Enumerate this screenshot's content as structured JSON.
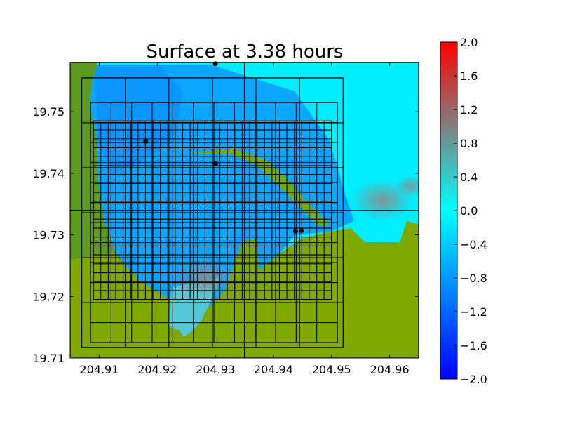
{
  "chart_data": {
    "type": "heatmap",
    "title": "Surface at 3.38 hours",
    "xlabel": "",
    "ylabel": "",
    "xlim": [
      204.905,
      204.965
    ],
    "ylim": [
      19.71,
      19.758
    ],
    "x_ticks": [
      {
        "value": 204.91,
        "label": "204.91"
      },
      {
        "value": 204.92,
        "label": "204.92"
      },
      {
        "value": 204.93,
        "label": "204.93"
      },
      {
        "value": 204.94,
        "label": "204.94"
      },
      {
        "value": 204.95,
        "label": "204.95"
      },
      {
        "value": 204.96,
        "label": "204.96"
      }
    ],
    "y_ticks": [
      {
        "value": 19.71,
        "label": "19.71"
      },
      {
        "value": 19.72,
        "label": "19.72"
      },
      {
        "value": 19.73,
        "label": "19.73"
      },
      {
        "value": 19.74,
        "label": "19.74"
      },
      {
        "value": 19.75,
        "label": "19.75"
      }
    ],
    "colorbar": {
      "min": -2.0,
      "max": 2.0,
      "colormap": [
        "#0000ff",
        "#00ffff",
        "#808080",
        "#ff0000"
      ],
      "ticks": [
        {
          "value": 2.0,
          "label": "2.0"
        },
        {
          "value": 1.6,
          "label": "1.6"
        },
        {
          "value": 1.2,
          "label": "1.2"
        },
        {
          "value": 0.8,
          "label": "0.8"
        },
        {
          "value": 0.4,
          "label": "0.4"
        },
        {
          "value": 0.0,
          "label": "0.0"
        },
        {
          "value": -0.4,
          "label": "−0.4"
        },
        {
          "value": -0.8,
          "label": "−0.8"
        },
        {
          "value": -1.2,
          "label": "−1.2"
        },
        {
          "value": -1.6,
          "label": "−1.6"
        },
        {
          "value": -2.0,
          "label": "−2.0"
        }
      ]
    },
    "colors": {
      "land": "#7fa800",
      "land_dark": "#5f9a20",
      "ocean": "#00eeff",
      "shallow_gray": "#8aa6a6"
    },
    "gauges": [
      {
        "x": 204.93,
        "y": 19.7578
      },
      {
        "x": 204.918,
        "y": 19.7452
      },
      {
        "x": 204.93,
        "y": 19.7416
      },
      {
        "x": 204.9438,
        "y": 19.7306
      },
      {
        "x": 204.9448,
        "y": 19.7307
      }
    ],
    "patch_boundaries": [
      {
        "x0": 204.905,
        "x1": 204.965,
        "y0": 19.71,
        "y1": 19.758,
        "nx": 2,
        "ny": 2
      },
      {
        "x0": 204.907,
        "x1": 204.952,
        "y0": 19.7117,
        "y1": 19.7555,
        "nx": 6,
        "ny": 6
      },
      {
        "x0": 204.9085,
        "x1": 204.951,
        "y0": 19.7125,
        "y1": 19.7515,
        "nx": 12,
        "ny": 12
      },
      {
        "x0": 204.909,
        "x1": 204.95,
        "y0": 19.7195,
        "y1": 19.7485,
        "nx": 32,
        "ny": 20
      }
    ]
  }
}
